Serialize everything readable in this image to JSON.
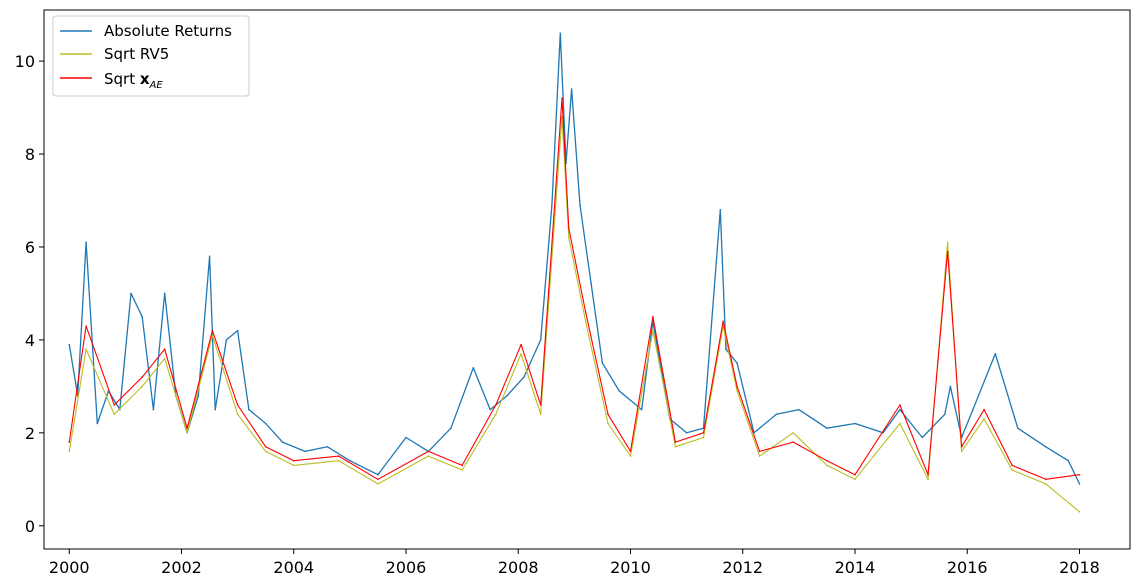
{
  "chart_data": {
    "type": "line",
    "title": "",
    "xlabel": "",
    "ylabel": "",
    "xlim": [
      1999.55,
      2018.9
    ],
    "ylim": [
      -0.5,
      11.1
    ],
    "grid": false,
    "legend_position": "top-left",
    "x_ticks": [
      2000,
      2002,
      2004,
      2006,
      2008,
      2010,
      2012,
      2014,
      2016,
      2018
    ],
    "x_tick_labels": [
      "2000",
      "2002",
      "2004",
      "2006",
      "2008",
      "2010",
      "2012",
      "2014",
      "2016",
      "2018"
    ],
    "y_ticks": [
      0,
      2,
      4,
      6,
      8,
      10
    ],
    "y_tick_labels": [
      "0",
      "2",
      "4",
      "6",
      "8",
      "10"
    ],
    "series": [
      {
        "name": "Absolute Returns",
        "legend_label": "Absolute Returns",
        "color": "#1f77b4",
        "x": [
          2000.0,
          2000.15,
          2000.3,
          2000.5,
          2000.7,
          2000.9,
          2001.1,
          2001.3,
          2001.5,
          2001.7,
          2001.9,
          2002.1,
          2002.3,
          2002.5,
          2002.6,
          2002.8,
          2003.0,
          2003.2,
          2003.5,
          2003.8,
          2004.2,
          2004.6,
          2005.0,
          2005.5,
          2006.0,
          2006.4,
          2006.8,
          2007.2,
          2007.5,
          2007.8,
          2008.1,
          2008.4,
          2008.6,
          2008.75,
          2008.85,
          2008.95,
          2009.1,
          2009.3,
          2009.5,
          2009.8,
          2010.2,
          2010.4,
          2010.7,
          2011.0,
          2011.3,
          2011.6,
          2011.7,
          2011.9,
          2012.2,
          2012.6,
          2013.0,
          2013.5,
          2014.0,
          2014.5,
          2014.8,
          2015.2,
          2015.6,
          2015.7,
          2015.9,
          2016.1,
          2016.5,
          2016.9,
          2017.4,
          2017.8,
          2018.0
        ],
        "y": [
          3.9,
          2.8,
          6.1,
          2.2,
          2.9,
          2.5,
          5.0,
          4.5,
          2.5,
          5.0,
          2.8,
          2.0,
          2.8,
          5.8,
          2.5,
          4.0,
          4.2,
          2.5,
          2.2,
          1.8,
          1.6,
          1.7,
          1.4,
          1.1,
          1.9,
          1.6,
          2.1,
          3.4,
          2.5,
          2.8,
          3.2,
          4.0,
          6.9,
          10.6,
          7.8,
          9.4,
          6.9,
          5.2,
          3.5,
          2.9,
          2.5,
          4.4,
          2.3,
          2.0,
          2.1,
          6.8,
          3.8,
          3.5,
          2.0,
          2.4,
          2.5,
          2.1,
          2.2,
          2.0,
          2.5,
          1.9,
          2.4,
          3.0,
          1.9,
          2.5,
          3.7,
          2.1,
          1.7,
          1.4,
          0.9
        ]
      },
      {
        "name": "Sqrt RV5",
        "legend_label": "Sqrt RV5",
        "color": "#bcbd22",
        "x": [
          2000.0,
          2000.3,
          2000.8,
          2001.3,
          2001.7,
          2002.1,
          2002.55,
          2003.0,
          2003.5,
          2004.0,
          2004.8,
          2005.5,
          2006.4,
          2007.0,
          2007.6,
          2008.05,
          2008.4,
          2008.78,
          2008.9,
          2009.2,
          2009.6,
          2010.0,
          2010.4,
          2010.8,
          2011.3,
          2011.65,
          2011.9,
          2012.3,
          2012.9,
          2013.5,
          2014.0,
          2014.8,
          2015.3,
          2015.65,
          2015.9,
          2016.3,
          2016.8,
          2017.4,
          2018.0
        ],
        "y": [
          1.6,
          3.8,
          2.4,
          3.0,
          3.6,
          2.0,
          4.1,
          2.4,
          1.6,
          1.3,
          1.4,
          0.9,
          1.5,
          1.2,
          2.4,
          3.7,
          2.4,
          8.8,
          6.2,
          4.4,
          2.2,
          1.5,
          4.2,
          1.7,
          1.9,
          4.3,
          2.9,
          1.5,
          2.0,
          1.3,
          1.0,
          2.2,
          1.0,
          6.1,
          1.6,
          2.3,
          1.2,
          0.9,
          0.3
        ]
      },
      {
        "name": "Sqrt x_AE",
        "legend_label": "Sqrt ",
        "legend_label_bold": "x",
        "legend_label_sub": "AE",
        "color": "#ff0000",
        "x": [
          2000.0,
          2000.3,
          2000.8,
          2001.3,
          2001.7,
          2002.1,
          2002.55,
          2003.0,
          2003.5,
          2004.0,
          2004.8,
          2005.5,
          2006.4,
          2007.0,
          2007.6,
          2008.05,
          2008.4,
          2008.78,
          2008.9,
          2009.2,
          2009.6,
          2010.0,
          2010.4,
          2010.8,
          2011.3,
          2011.65,
          2011.9,
          2012.3,
          2012.9,
          2013.5,
          2014.0,
          2014.8,
          2015.3,
          2015.65,
          2015.9,
          2016.3,
          2016.8,
          2017.4,
          2018.0
        ],
        "y": [
          1.8,
          4.3,
          2.6,
          3.2,
          3.8,
          2.1,
          4.2,
          2.6,
          1.7,
          1.4,
          1.5,
          1.0,
          1.6,
          1.3,
          2.6,
          3.9,
          2.6,
          9.2,
          6.4,
          4.6,
          2.4,
          1.6,
          4.5,
          1.8,
          2.0,
          4.4,
          3.0,
          1.6,
          1.8,
          1.4,
          1.1,
          2.6,
          1.1,
          5.9,
          1.7,
          2.5,
          1.3,
          1.0,
          1.1
        ]
      }
    ]
  }
}
